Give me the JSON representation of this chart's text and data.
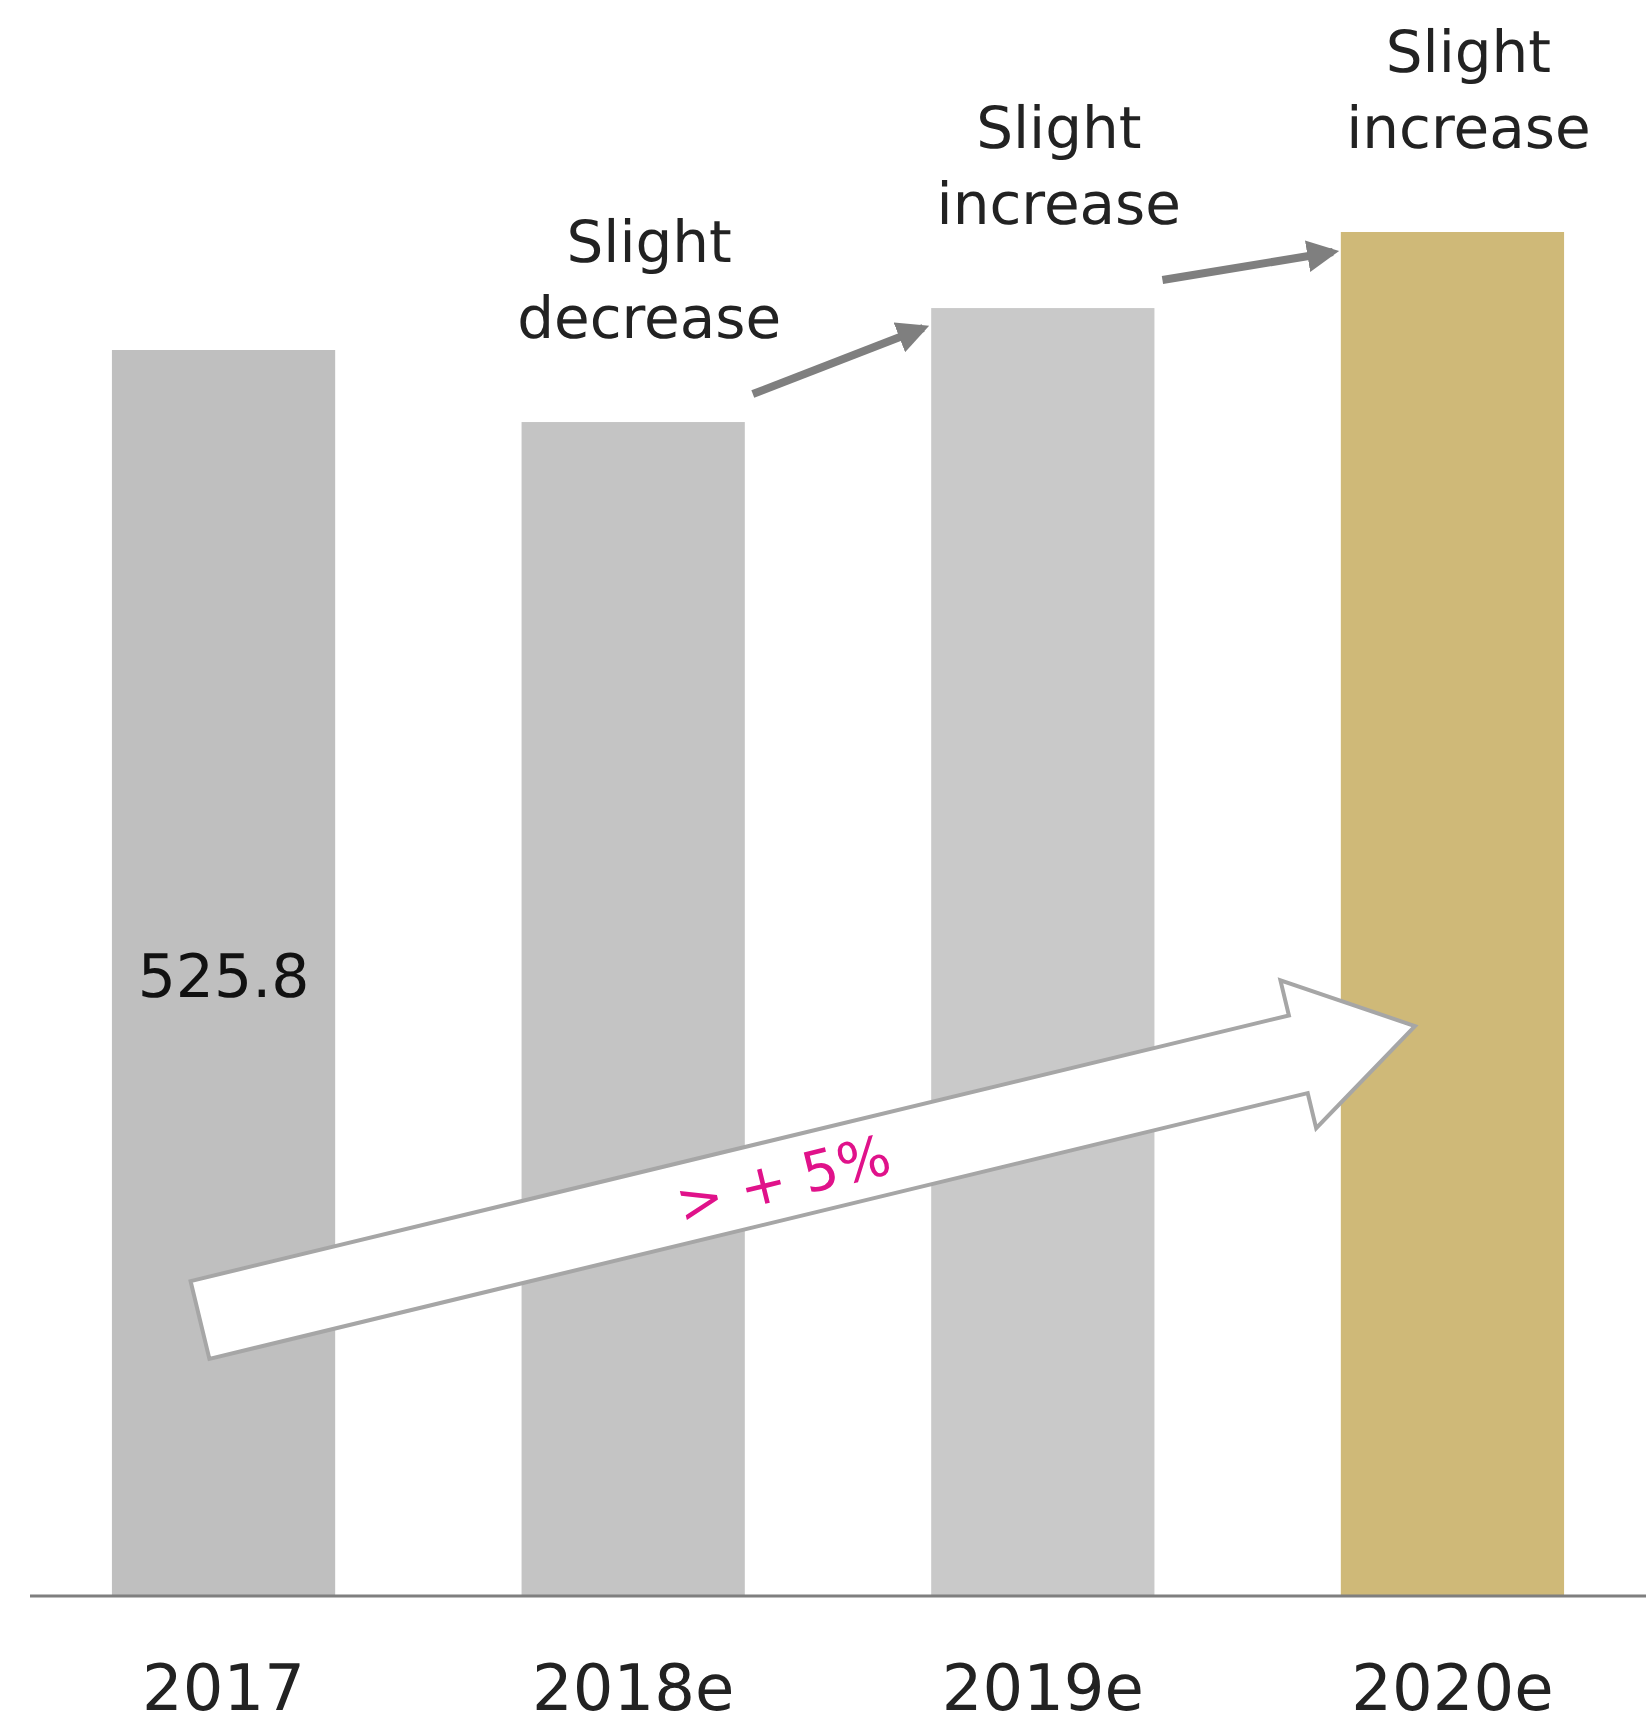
{
  "chart_data": {
    "type": "bar",
    "categories": [
      "2017",
      "2018e",
      "2019e",
      "2020e"
    ],
    "values": [
      525.8,
      495.4,
      543.5,
      575.6
    ],
    "colors": [
      "#bfbfbf",
      "#c4c4c4",
      "#c9c9c9",
      "#cfb978"
    ],
    "value_labels": [
      "525.8",
      null,
      null,
      null
    ],
    "annotations": [
      "Slight decrease",
      "Slight increase",
      "Slight increase",
      "> + 5%"
    ]
  }
}
